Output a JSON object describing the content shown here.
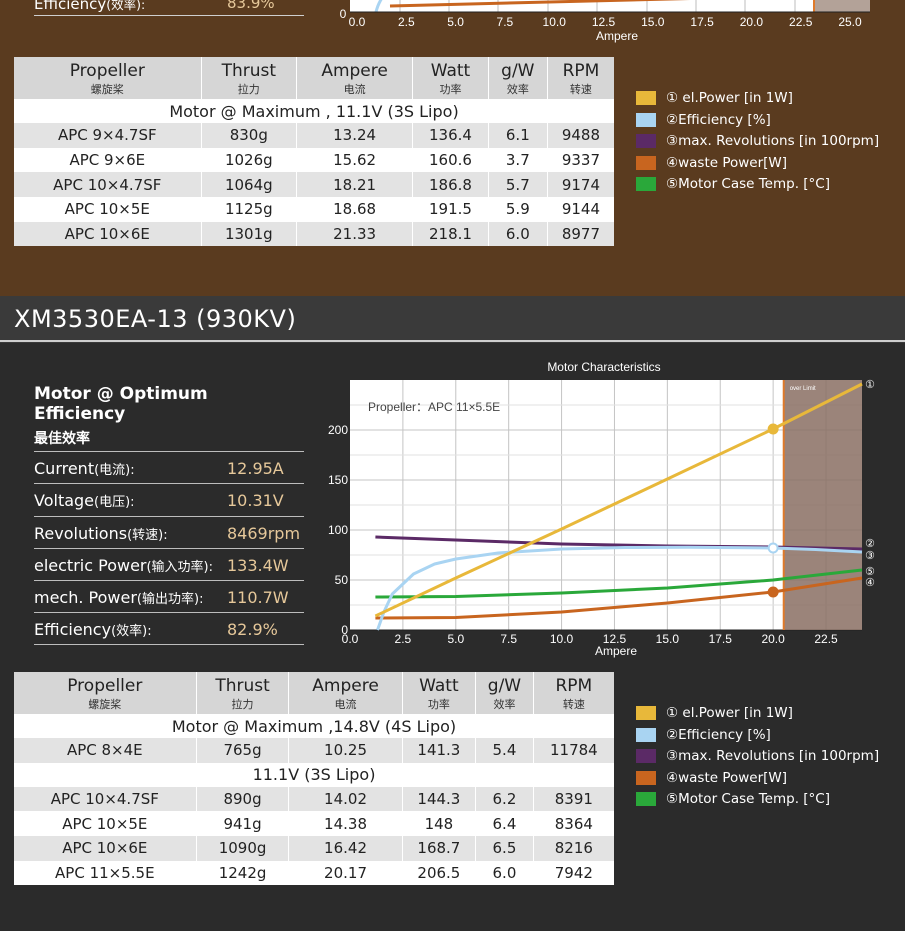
{
  "top_section": {
    "partial_stat": {
      "label": "Efficiency",
      "label_cn": "(效率):",
      "value": "83.9%"
    },
    "axis": {
      "ticks": [
        "0.0",
        "2.5",
        "5.0",
        "7.5",
        "10.0",
        "12.5",
        "15.0",
        "17.5",
        "20.0",
        "22.5",
        "25.0"
      ],
      "zero": "0",
      "xlabel": "Ampere"
    },
    "table": {
      "headers": [
        {
          "en": "Propeller",
          "cn": "螺旋桨"
        },
        {
          "en": "Thrust",
          "cn": "拉力"
        },
        {
          "en": "Ampere",
          "cn": "电流"
        },
        {
          "en": "Watt",
          "cn": "功率"
        },
        {
          "en": "g/W",
          "cn": "效率"
        },
        {
          "en": "RPM",
          "cn": "转速"
        }
      ],
      "section_label": "Motor @ Maximum , 11.1V (3S Lipo)",
      "rows": [
        [
          "APC 9×4.7SF",
          "830g",
          "13.24",
          "136.4",
          "6.1",
          "9488"
        ],
        [
          "APC 9×6E",
          "1026g",
          "15.62",
          "160.6",
          "3.7",
          "9337"
        ],
        [
          "APC 10×4.7SF",
          "1064g",
          "18.21",
          "186.8",
          "5.7",
          "9174"
        ],
        [
          "APC 10×5E",
          "1125g",
          "18.68",
          "191.5",
          "5.9",
          "9144"
        ],
        [
          "APC 10×6E",
          "1301g",
          "21.33",
          "218.1",
          "6.0",
          "8977"
        ]
      ]
    }
  },
  "legend": [
    {
      "text": "① el.Power [in 1W]",
      "color": "#e8b83a"
    },
    {
      "text": "②Efficiency [%]",
      "color": "#a9d4f2"
    },
    {
      "text": "③max. Revolutions [in 100rpm]",
      "color": "#5b2a66"
    },
    {
      "text": "④waste Power[W]",
      "color": "#c8651f"
    },
    {
      "text": "⑤Motor Case Temp. [°C]",
      "color": "#2aa83a"
    }
  ],
  "bottom_section": {
    "title": "XM3530EA-13 (930KV)",
    "stats_heading": "Motor @ Optimum Efficiency",
    "stats_sub": "最佳效率",
    "stats": [
      {
        "label": "Current",
        "label_cn": "(电流):",
        "value": "12.95A"
      },
      {
        "label": "Voltage",
        "label_cn": "(电压):",
        "value": "10.31V"
      },
      {
        "label": "Revolutions",
        "label_cn": "(转速):",
        "value": "8469rpm"
      },
      {
        "label": "electric Power",
        "label_cn": "(输入功率):",
        "value": "133.4W"
      },
      {
        "label": "mech. Power",
        "label_cn": "(输出功率):",
        "value": "110.7W"
      },
      {
        "label": "Efficiency",
        "label_cn": "(效率):",
        "value": "82.9%"
      }
    ],
    "table": {
      "section_label_1": "Motor @ Maximum ,14.8V (4S Lipo)",
      "rows_1": [
        [
          "APC 8×4E",
          "765g",
          "10.25",
          "141.3",
          "5.4",
          "11784"
        ]
      ],
      "section_label_2": "11.1V (3S Lipo)",
      "rows_2": [
        [
          "APC 10×4.7SF",
          "890g",
          "14.02",
          "144.3",
          "6.2",
          "8391"
        ],
        [
          "APC 10×5E",
          "941g",
          "14.38",
          "148",
          "6.4",
          "8364"
        ],
        [
          "APC 10×6E",
          "1090g",
          "16.42",
          "168.7",
          "6.5",
          "8216"
        ],
        [
          "APC 11×5.5E",
          "1242g",
          "20.17",
          "206.5",
          "6.0",
          "7942"
        ]
      ]
    }
  },
  "chart_data": [
    {
      "type": "line",
      "title": "Motor Characteristics",
      "annotation": "Propeller：APC 11×5.5E",
      "over_limit_label": "over Limit",
      "xlabel": "Ampere",
      "xlim": [
        0,
        24.2
      ],
      "ylim": [
        0,
        250
      ],
      "x_ticks": [
        "0.0",
        "2.5",
        "5.0",
        "7.5",
        "10.0",
        "12.5",
        "15.0",
        "17.5",
        "20.0",
        "22.5"
      ],
      "y_ticks": [
        "0",
        "50",
        "100",
        "150",
        "200"
      ],
      "over_limit_x": 20.5,
      "marker_x": 20.0,
      "end_labels": [
        "①",
        "②",
        "③",
        "⑤",
        "④"
      ],
      "series": [
        {
          "name": "① el.Power [in 1W]",
          "color": "#e8b83a",
          "x": [
            1.2,
            5,
            10,
            15,
            20,
            24.2
          ],
          "y": [
            14,
            52,
            101,
            151,
            201,
            246
          ]
        },
        {
          "name": "②Efficiency [%]",
          "color": "#a9d4f2",
          "x": [
            1.3,
            1.6,
            2,
            3,
            4,
            5,
            7,
            10,
            13,
            16,
            20,
            22,
            24.2
          ],
          "y": [
            0,
            18,
            36,
            56,
            66,
            71,
            77,
            81,
            82.5,
            82.8,
            82,
            80.5,
            78
          ]
        },
        {
          "name": "③max. Revolutions [in 100rpm]",
          "color": "#5b2a66",
          "x": [
            1.2,
            5,
            10,
            15,
            20,
            24.2
          ],
          "y": [
            93,
            90,
            86,
            84,
            83,
            81
          ]
        },
        {
          "name": "④waste Power[W]",
          "color": "#c8651f",
          "x": [
            1.2,
            5,
            10,
            15,
            20,
            24.2
          ],
          "y": [
            12,
            12.5,
            18,
            27,
            38,
            52
          ]
        },
        {
          "name": "⑤Motor Case Temp. [°C]",
          "color": "#2aa83a",
          "x": [
            1.2,
            5,
            10,
            15,
            20,
            24.2
          ],
          "y": [
            33,
            33.5,
            37,
            42,
            50,
            60
          ]
        }
      ]
    }
  ]
}
